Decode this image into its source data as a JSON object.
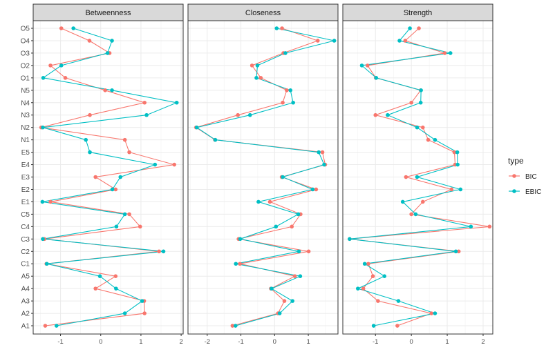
{
  "chart_data": {
    "type": "line",
    "orientation": "horizontal-facets",
    "categories": [
      "A1",
      "A2",
      "A3",
      "A4",
      "A5",
      "C1",
      "C2",
      "C3",
      "C4",
      "C5",
      "E1",
      "E2",
      "E3",
      "E4",
      "E5",
      "N1",
      "N2",
      "N3",
      "N4",
      "N5",
      "O1",
      "O2",
      "O3",
      "O4",
      "O5"
    ],
    "legend": {
      "title": "type",
      "position": "right",
      "entries": [
        {
          "name": "BIC",
          "color": "#F8766D"
        },
        {
          "name": "EBIC",
          "color": "#00BFC4"
        }
      ]
    },
    "panels": [
      {
        "title": "Betweenness",
        "xlim": [
          -1.68,
          2.05
        ],
        "xticks": [
          -1,
          0,
          1,
          2
        ],
        "series": [
          {
            "name": "BIC",
            "values": [
              -1.38,
              1.09,
              1.08,
              -0.13,
              0.37,
              -1.35,
              1.45,
              -1.4,
              0.98,
              0.71,
              -1.25,
              0.37,
              -0.13,
              1.83,
              0.71,
              0.6,
              -1.48,
              -0.27,
              1.09,
              0.11,
              -0.88,
              -1.25,
              0.22,
              -0.28,
              -0.98
            ]
          },
          {
            "name": "EBIC",
            "values": [
              -1.1,
              0.6,
              1.03,
              0.38,
              -0.02,
              -1.34,
              1.56,
              -1.44,
              0.39,
              0.6,
              -1.45,
              0.29,
              0.49,
              1.35,
              -0.27,
              -0.37,
              -1.44,
              1.14,
              1.89,
              0.28,
              -1.43,
              -0.98,
              0.17,
              0.28,
              -0.68
            ]
          }
        ]
      },
      {
        "title": "Closeness",
        "xlim": [
          -2.57,
          1.88
        ],
        "xticks": [
          -2,
          -1,
          0,
          1
        ],
        "series": [
          {
            "name": "BIC",
            "values": [
              -1.25,
              0.1,
              0.29,
              -0.11,
              0.6,
              -1.03,
              1.01,
              -1.07,
              0.51,
              0.77,
              -0.14,
              1.23,
              0.21,
              1.5,
              1.42,
              -1.77,
              -2.33,
              -1.09,
              0.24,
              0.36,
              -0.41,
              -0.67,
              0.26,
              1.28,
              0.22
            ]
          },
          {
            "name": "EBIC",
            "values": [
              -1.16,
              0.15,
              0.53,
              -0.09,
              0.76,
              -1.15,
              0.72,
              -1.02,
              0.04,
              0.7,
              -0.48,
              1.13,
              0.24,
              1.47,
              1.31,
              -1.76,
              -2.31,
              -0.73,
              0.55,
              0.47,
              -0.54,
              -0.51,
              0.32,
              1.77,
              0.06
            ]
          }
        ]
      },
      {
        "title": "Strength",
        "xlim": [
          -1.91,
          2.27
        ],
        "xticks": [
          -1,
          0,
          1,
          2
        ],
        "series": [
          {
            "name": "BIC",
            "values": [
              -0.39,
              0.56,
              -0.93,
              -1.34,
              -1.07,
              -1.2,
              1.32,
              -1.72,
              2.18,
              0.0,
              0.32,
              1.12,
              -0.15,
              1.22,
              1.2,
              0.47,
              0.32,
              -1.0,
              0.0,
              0.26,
              -0.99,
              -1.22,
              0.93,
              -0.17,
              0.21
            ]
          },
          {
            "name": "EBIC",
            "values": [
              -1.05,
              0.66,
              -0.36,
              -1.49,
              -0.75,
              -1.3,
              1.24,
              -1.72,
              1.66,
              0.12,
              -0.24,
              1.37,
              0.16,
              1.29,
              1.28,
              0.66,
              0.16,
              -0.66,
              0.26,
              0.27,
              -0.98,
              -1.38,
              1.09,
              -0.33,
              -0.04
            ]
          }
        ]
      }
    ],
    "grid": true,
    "xlabel": "",
    "ylabel": ""
  }
}
